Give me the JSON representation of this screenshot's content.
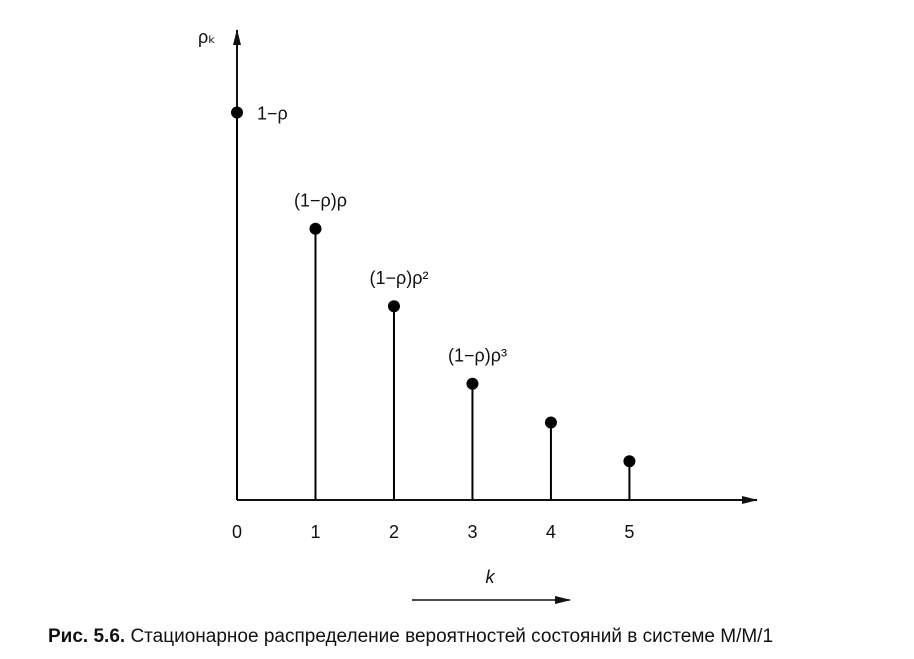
{
  "chart_data": {
    "type": "stem",
    "y_label": "ρₖ",
    "x_label": "k",
    "x": [
      0,
      1,
      2,
      3,
      4,
      5
    ],
    "values": [
      1.0,
      0.7,
      0.5,
      0.3,
      0.2,
      0.1
    ],
    "point_labels": [
      "1−ρ",
      "(1−ρ)ρ",
      "(1−ρ)ρ²",
      "(1−ρ)ρ³",
      null,
      null
    ],
    "xlim": [
      0,
      6.6
    ],
    "xticks": [
      0,
      1,
      2,
      3,
      4,
      5
    ],
    "ylim": [
      0,
      1.2
    ],
    "color": "#000000"
  },
  "caption": {
    "label": "Рис. 5.6.",
    "text": "Стационарное распределение вероятностей состояний в системе M/M/1"
  }
}
